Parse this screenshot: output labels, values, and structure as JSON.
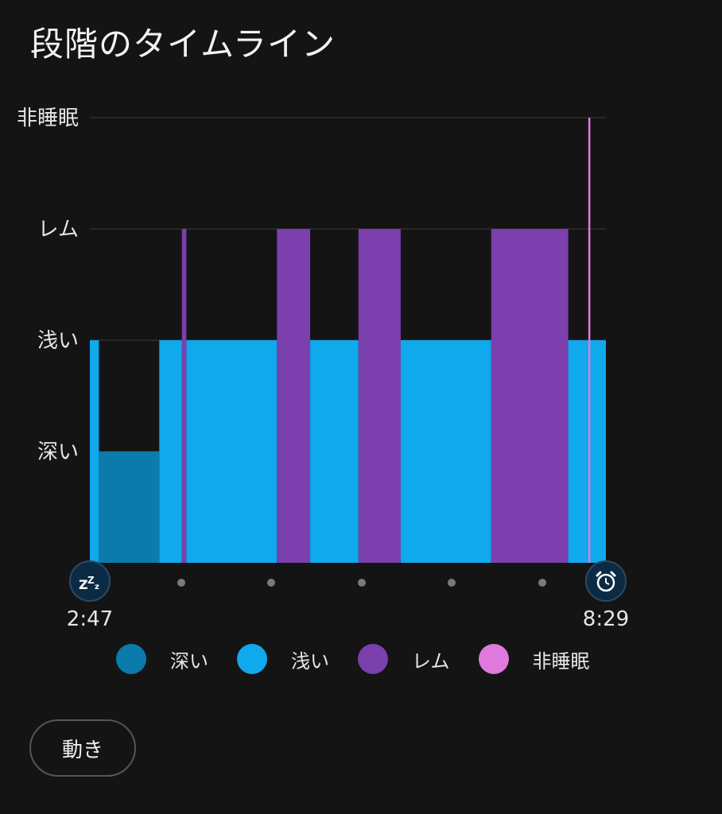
{
  "title": "段階のタイムライン",
  "button": {
    "movement_label": "動き"
  },
  "colors": {
    "deep": "#0a7bab",
    "light": "#0fa9ec",
    "rem": "#7b3fae",
    "awake": "#e07adf",
    "gridline": "#3a3a3a",
    "icon_bg": "#0b2a44"
  },
  "icons": {
    "start": "zzz-icon",
    "end": "alarm-clock-icon"
  },
  "chart_data": {
    "type": "bar",
    "subtype": "sleep-stage-timeline",
    "levels": [
      "深い",
      "浅い",
      "レム",
      "非睡眠"
    ],
    "x_start": "2:47",
    "x_end": "8:29",
    "grid": true,
    "legend_placement": "bottom",
    "legend": [
      {
        "key": "deep",
        "label": "深い"
      },
      {
        "key": "light",
        "label": "浅い"
      },
      {
        "key": "rem",
        "label": "レム"
      },
      {
        "key": "awake",
        "label": "非睡眠"
      }
    ],
    "segments": [
      {
        "stage": "light",
        "start": "2:47",
        "end": "2:53"
      },
      {
        "stage": "deep",
        "start": "2:53",
        "end": "3:33"
      },
      {
        "stage": "light",
        "start": "3:33",
        "end": "3:48"
      },
      {
        "stage": "rem",
        "start": "3:48",
        "end": "3:51"
      },
      {
        "stage": "light",
        "start": "3:51",
        "end": "4:51"
      },
      {
        "stage": "rem",
        "start": "4:51",
        "end": "5:13"
      },
      {
        "stage": "light",
        "start": "5:13",
        "end": "5:45"
      },
      {
        "stage": "rem",
        "start": "5:45",
        "end": "6:13"
      },
      {
        "stage": "light",
        "start": "6:13",
        "end": "7:13"
      },
      {
        "stage": "rem",
        "start": "7:13",
        "end": "8:04"
      },
      {
        "stage": "light",
        "start": "8:04",
        "end": "8:29"
      }
    ],
    "markers": [
      {
        "stage": "awake",
        "time": "8:18"
      }
    ]
  }
}
